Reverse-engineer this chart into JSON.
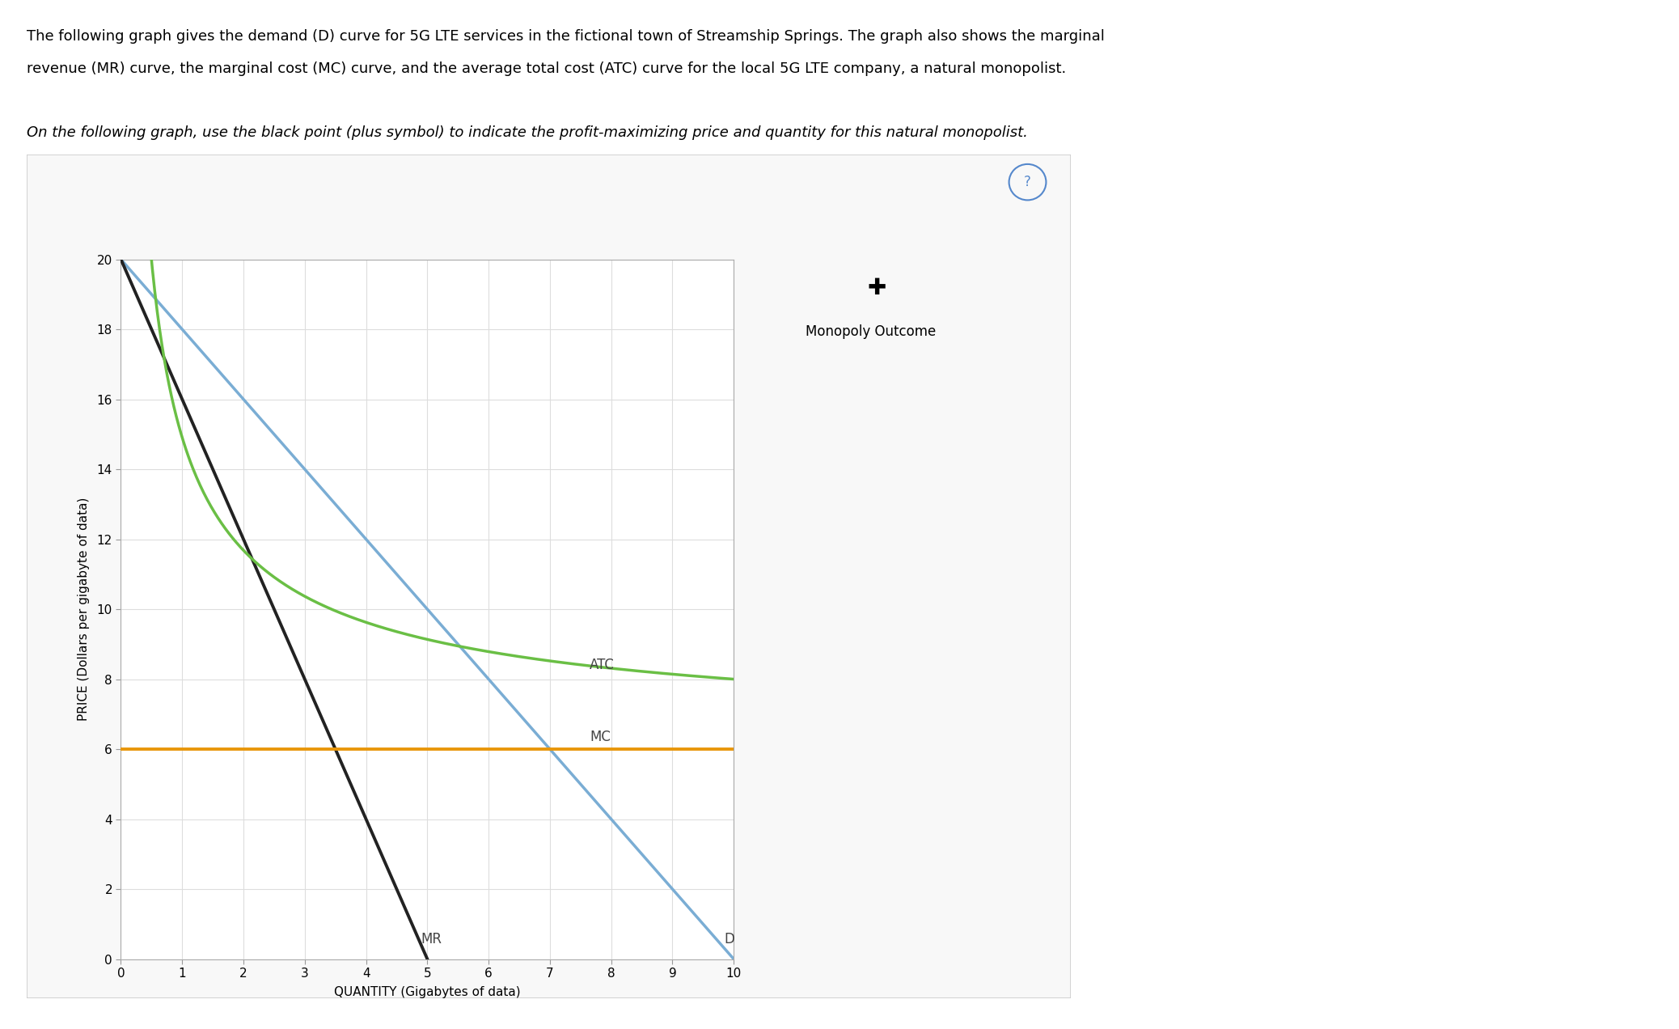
{
  "title_line1": "The following graph gives the demand (D) curve for 5G LTE services in the fictional town of Streamship Springs. The graph also shows the marginal",
  "title_line2": "revenue (MR) curve, the marginal cost (MC) curve, and the average total cost (ATC) curve for the local 5G LTE company, a natural monopolist.",
  "instruction_text": "On the following graph, use the black point (plus symbol) to indicate the profit-maximizing price and quantity for this natural monopolist.",
  "xlabel": "QUANTITY (Gigabytes of data)",
  "ylabel": "PRICE (Dollars per gigabyte of data)",
  "xlim": [
    0,
    10
  ],
  "ylim": [
    0,
    20
  ],
  "xticks": [
    0,
    1,
    2,
    3,
    4,
    5,
    6,
    7,
    8,
    9,
    10
  ],
  "yticks": [
    0,
    2,
    4,
    6,
    8,
    10,
    12,
    14,
    16,
    18,
    20
  ],
  "D_color": "#7aadd4",
  "MR_color": "#222222",
  "MC_color": "#e8960a",
  "ATC_color": "#6abf45",
  "MC_level": 6.0,
  "atc_A": 8.908,
  "atc_n": 0.6488,
  "atc_shift": 6.0,
  "monopoly_label": "Monopoly Outcome",
  "question_color": "#5588cc",
  "outer_box_color": "#cccccc",
  "outer_fill": "#f8f8f8",
  "plot_bg": "#ffffff",
  "grid_color": "#dddddd",
  "font_size_text": 13,
  "font_size_label": 11,
  "font_size_tick": 11,
  "font_size_curve_label": 12
}
